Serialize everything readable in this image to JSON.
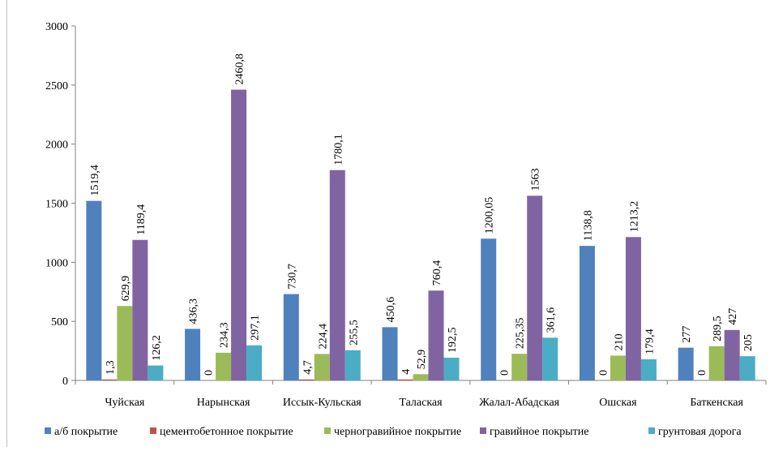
{
  "colors": {
    "series": [
      "#4F81BD",
      "#C0504D",
      "#9BBB59",
      "#8064A2",
      "#4BACC6"
    ],
    "axis": "#808080",
    "text": "#000000"
  },
  "chart_data": {
    "type": "bar",
    "title": "",
    "xlabel": "",
    "ylabel": "",
    "ylim": [
      0,
      3000
    ],
    "yticks": [
      0,
      500,
      1000,
      1500,
      2000,
      2500,
      3000
    ],
    "grid": false,
    "legend_position": "bottom",
    "categories": [
      "Чуйская",
      "Нарынская",
      "Иссык-Кульская",
      "Талаская",
      "Жалал-Абадская",
      "Ошская",
      "Баткенская"
    ],
    "series": [
      {
        "name": "а/б покрытие",
        "values": [
          1519.4,
          436.3,
          730.7,
          450.6,
          1200.05,
          1138.8,
          277
        ],
        "labels": [
          "1519,4",
          "436,3",
          "730,7",
          "450,6",
          "1200,05",
          "1138,8",
          "277"
        ]
      },
      {
        "name": "цементобетонное покрытие",
        "values": [
          1.3,
          0,
          4.7,
          4,
          0,
          0,
          0
        ],
        "labels": [
          "1,3",
          "0",
          "4,7",
          "4",
          "0",
          "0",
          "0"
        ]
      },
      {
        "name": "черногравийное покрытие",
        "values": [
          629.9,
          234.3,
          224.4,
          52.9,
          225.35,
          210,
          289.5
        ],
        "labels": [
          "629,9",
          "234,3",
          "224,4",
          "52,9",
          "225,35",
          "210",
          "289,5"
        ]
      },
      {
        "name": "гравийное покрытие",
        "values": [
          1189.4,
          2460.8,
          1780.1,
          760.4,
          1563,
          1213.2,
          427
        ],
        "labels": [
          "1189,4",
          "2460,8",
          "1780,1",
          "760,4",
          "1563",
          "1213,2",
          "427"
        ]
      },
      {
        "name": "грунтовая дорога",
        "values": [
          126.2,
          297.1,
          255.5,
          192.5,
          361.6,
          179.4,
          205
        ],
        "labels": [
          "126,2",
          "297,1",
          "255,5",
          "192,5",
          "361,6",
          "179,4",
          "205"
        ]
      }
    ]
  }
}
